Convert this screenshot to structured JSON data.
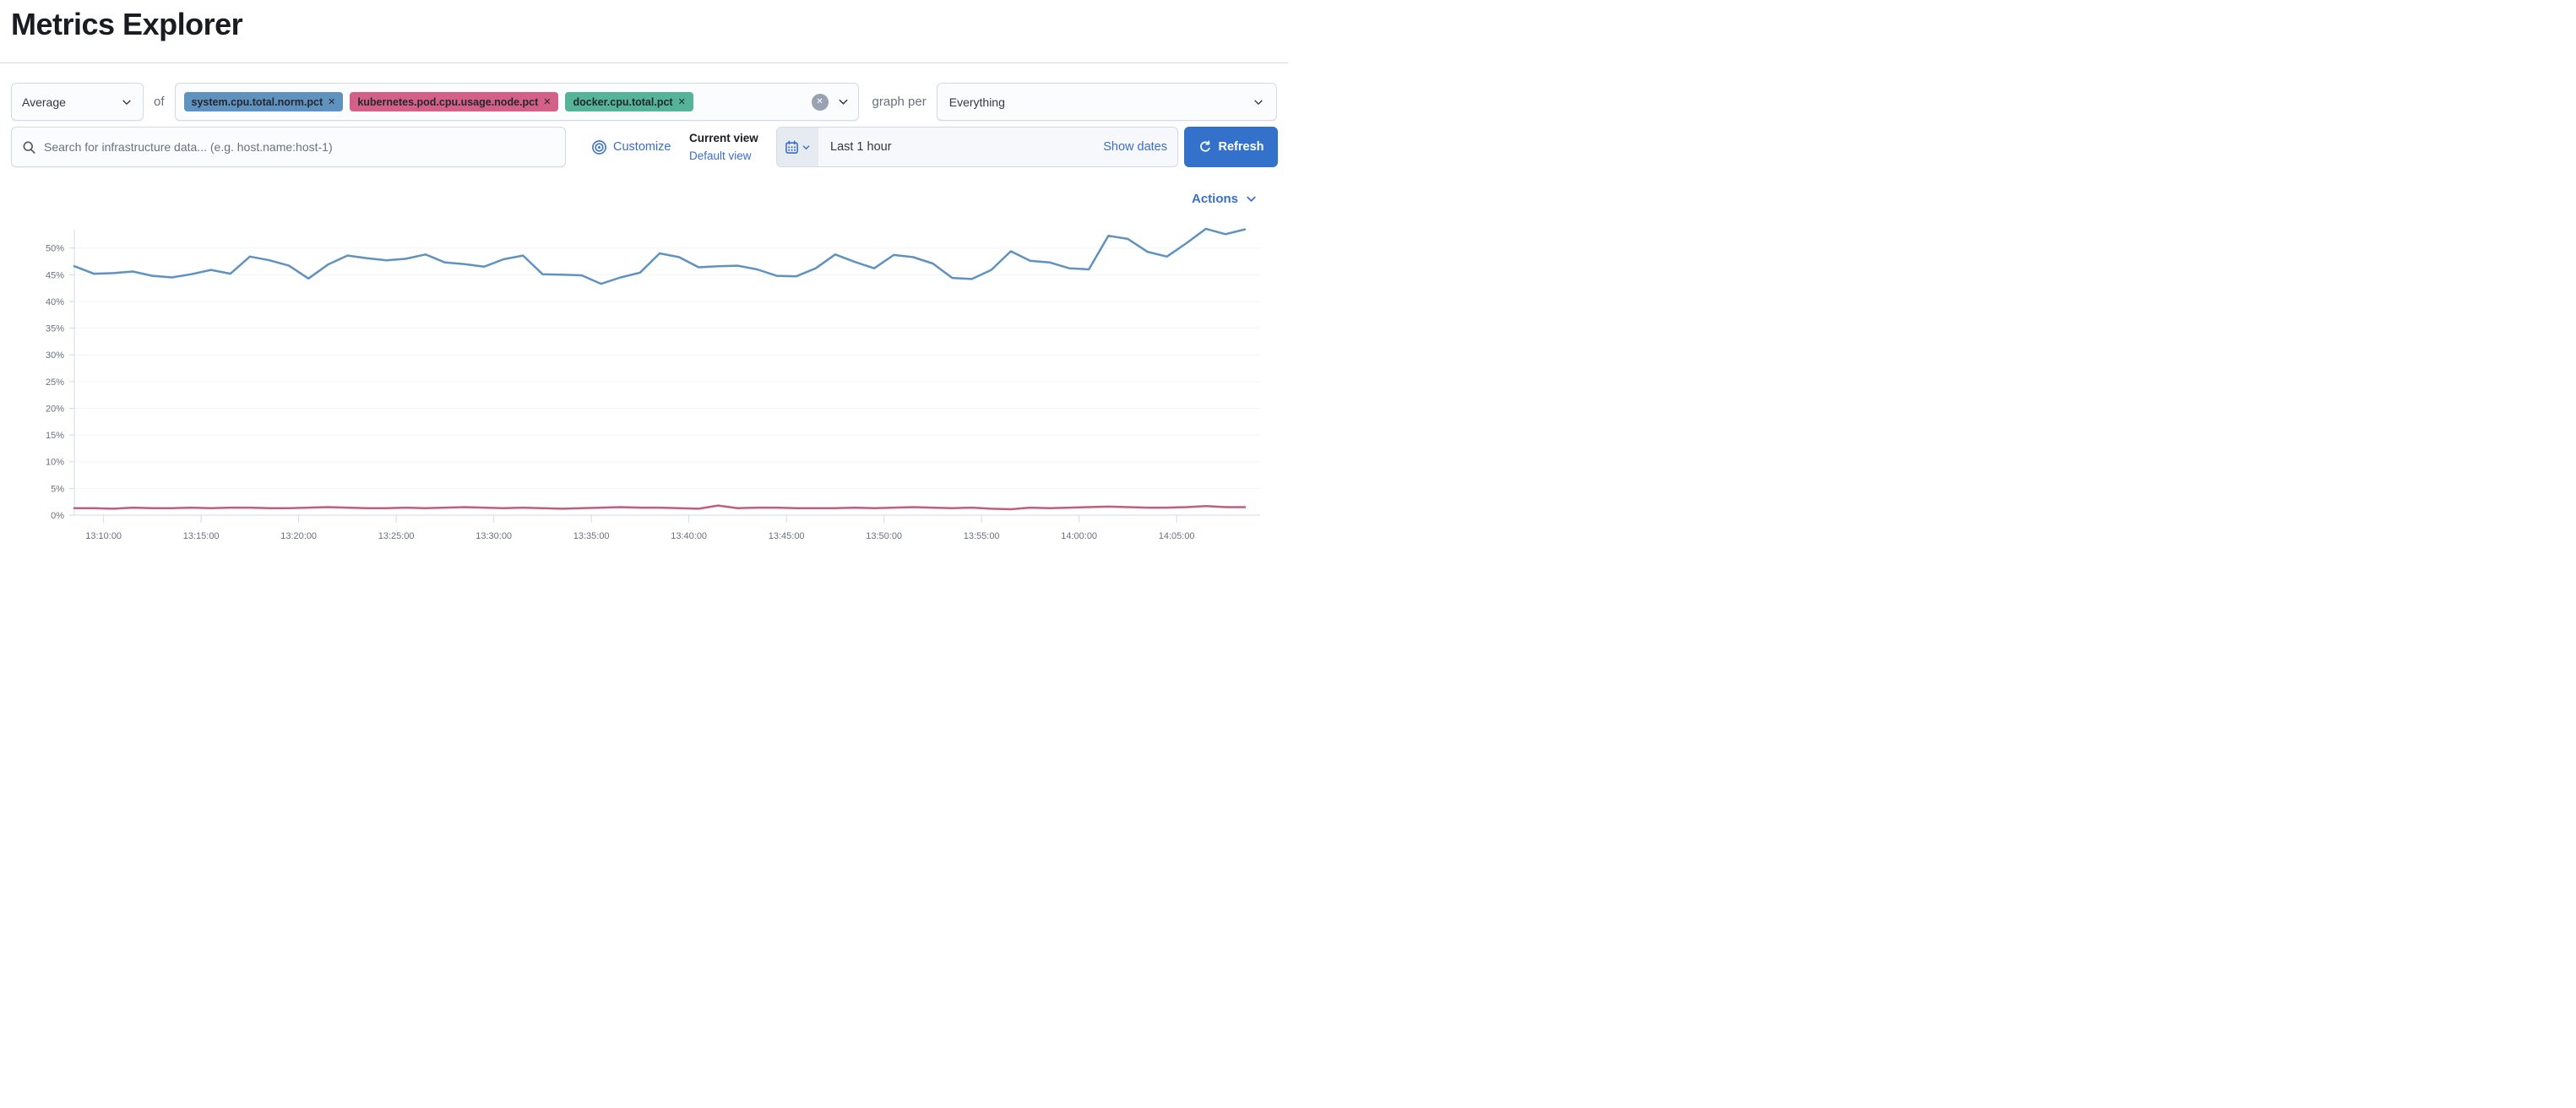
{
  "page": {
    "title": "Metrics Explorer"
  },
  "toolbar": {
    "aggregation": {
      "value": "Average"
    },
    "of_label": "of",
    "metrics": [
      {
        "label": "system.cpu.total.norm.pct",
        "color": "#6092C0"
      },
      {
        "label": "kubernetes.pod.cpu.usage.node.pct",
        "color": "#D36086"
      },
      {
        "label": "docker.cpu.total.pct",
        "color": "#54B399"
      }
    ],
    "remove_glyph": "✕",
    "clear_glyph": "✕",
    "graph_per_label": "graph per",
    "group_by": {
      "value": "Everything"
    }
  },
  "search": {
    "placeholder": "Search for infrastructure data... (e.g. host.name:host-1)"
  },
  "view_controls": {
    "customize_label": "Customize",
    "current_view_label": "Current view",
    "default_view_label": "Default view"
  },
  "time_picker": {
    "range_label": "Last 1 hour",
    "show_dates_label": "Show dates",
    "refresh_label": "Refresh"
  },
  "actions": {
    "label": "Actions"
  },
  "chart_data": {
    "type": "line",
    "title": "",
    "xlabel": "",
    "ylabel": "",
    "x_start": "13:08:30",
    "x_interval_seconds": 60,
    "x_tick_labels": [
      "13:10:00",
      "13:15:00",
      "13:20:00",
      "13:25:00",
      "13:30:00",
      "13:35:00",
      "13:40:00",
      "13:45:00",
      "13:50:00",
      "13:55:00",
      "14:00:00",
      "14:05:00"
    ],
    "y_tick_labels": [
      "0%",
      "5%",
      "10%",
      "15%",
      "20%",
      "25%",
      "30%",
      "35%",
      "40%",
      "45%",
      "50%"
    ],
    "ylim": [
      0,
      54
    ],
    "grid": "faint-horizontal",
    "legend": "none",
    "series": [
      {
        "name": "system.cpu.total.norm.pct",
        "color": "#6092C0",
        "values": [
          46.6,
          45.2,
          45.3,
          45.6,
          44.8,
          44.5,
          45.1,
          45.9,
          45.2,
          48.4,
          47.7,
          46.7,
          44.3,
          46.9,
          48.6,
          48.1,
          47.7,
          48.0,
          48.8,
          47.3,
          47.0,
          46.5,
          47.9,
          48.6,
          45.1,
          45.0,
          44.9,
          43.3,
          44.5,
          45.4,
          49.0,
          48.3,
          46.4,
          46.6,
          46.7,
          46.0,
          44.8,
          44.7,
          46.2,
          48.8,
          47.4,
          46.2,
          48.7,
          48.3,
          47.1,
          44.4,
          44.2,
          45.9,
          49.4,
          47.6,
          47.3,
          46.2,
          46.0,
          52.3,
          51.7,
          49.3,
          48.4,
          50.9,
          53.6,
          52.6,
          53.5
        ]
      },
      {
        "name": "kubernetes.pod.cpu.usage.node.pct",
        "color": "#C45C80",
        "values": [
          1.3,
          1.3,
          1.2,
          1.4,
          1.3,
          1.3,
          1.4,
          1.3,
          1.4,
          1.4,
          1.3,
          1.3,
          1.4,
          1.5,
          1.4,
          1.3,
          1.3,
          1.4,
          1.3,
          1.4,
          1.5,
          1.4,
          1.3,
          1.4,
          1.3,
          1.2,
          1.3,
          1.4,
          1.5,
          1.4,
          1.4,
          1.3,
          1.2,
          1.8,
          1.3,
          1.4,
          1.4,
          1.3,
          1.3,
          1.3,
          1.4,
          1.3,
          1.4,
          1.5,
          1.4,
          1.3,
          1.4,
          1.2,
          1.1,
          1.4,
          1.3,
          1.4,
          1.5,
          1.6,
          1.5,
          1.4,
          1.4,
          1.5,
          1.7,
          1.5,
          1.5
        ]
      }
    ]
  }
}
